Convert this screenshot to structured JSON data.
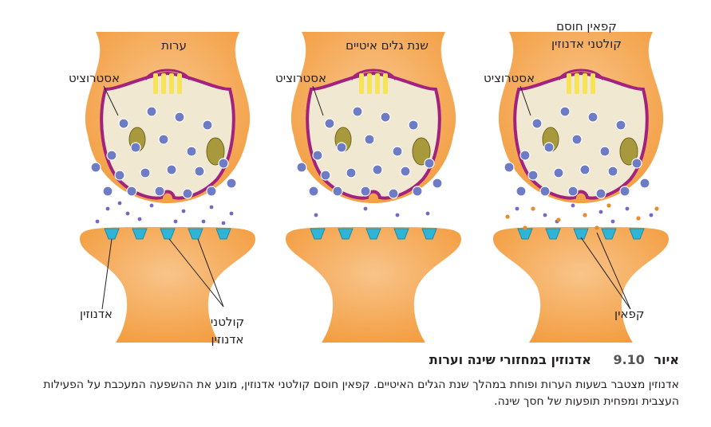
{
  "panels": [
    {
      "id": "awake",
      "title_lines": [
        "ערות"
      ],
      "astrocyte_label": "אסטרוציט",
      "caffeine": false
    },
    {
      "id": "sws",
      "title_lines": [
        "שנת גלים איטיים"
      ],
      "astrocyte_label": "אסטרוציט",
      "caffeine": false
    },
    {
      "id": "caffeine",
      "title_lines": [
        "קפאין חוסם",
        "קולטני אדנוזין"
      ],
      "astrocyte_label": "אסטרוציט",
      "caffeine": true
    }
  ],
  "labels": {
    "adenosine": "אדנוזין",
    "receptor_line1": "קולטני",
    "receptor_line2": "אדנוזין",
    "caffeine": "קפאין"
  },
  "caption": {
    "figure_word": "איור",
    "figure_number": "9.10",
    "title": "אדנוזין במחזורי שינה וערות",
    "body": "אדנוזין מצטבר בשעות הערות ופוחת במהלך שנת הגלים האיטיים. קפאין חוסם קולטני אדנוזין, מונע את ההשפעה המעכבת על הפעילות העצבית ומפחית תופעות של חסך שינה."
  },
  "colors": {
    "neuron": "#f39a3a",
    "neuron_light": "#f8c48a",
    "membrane": "#a2227e",
    "cytoplasm": "#f1e8d2",
    "vesicle": "#6e7cc6",
    "receptor": "#2fb4d6",
    "adenosine": "#7468c4",
    "caffeine": "#e98b2e",
    "mitochondria": "#a89a3c"
  }
}
